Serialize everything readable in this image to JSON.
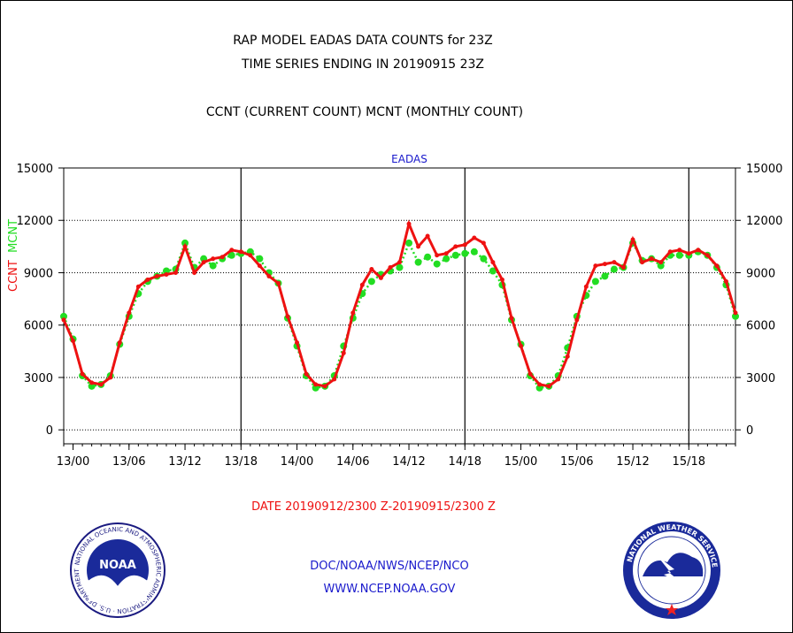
{
  "titles": {
    "line1": "RAP MODEL EADAS DATA COUNTS for 23Z",
    "line2": "TIME SERIES ENDING IN 20190915 23Z",
    "line3": "CCNT (CURRENT COUNT) MCNT (MONTHLY COUNT)"
  },
  "date_range": "DATE 20190912/2300 Z-20190915/2300 Z",
  "footer": {
    "org": "DOC/NOAA/NWS/NCEP/NCO",
    "url": "WWW.NCEP.NOAA.GOV"
  },
  "logos": {
    "left_text": "NOAA",
    "left_ring": "NATIONAL OCEANIC AND ATMOSPHERIC ADMINISTRATION · U.S. DEPARTMENT OF COMMERCE",
    "right_ring": "NATIONAL WEATHER SERVICE"
  },
  "colors": {
    "ccnt": "#ee1111",
    "mcnt": "#22dd22",
    "text_blue": "#1a1acc"
  },
  "chart_data": {
    "type": "line",
    "title": "EADAS",
    "ylabel_left": [
      "CCNT",
      "MCNT"
    ],
    "ylim": [
      -800,
      15000
    ],
    "yticks": [
      0,
      3000,
      6000,
      9000,
      12000,
      15000
    ],
    "x_start_hour": 0,
    "x_end_hour": 72,
    "xticks": [
      {
        "hour": 1,
        "label": "13/00"
      },
      {
        "hour": 7,
        "label": "13/06"
      },
      {
        "hour": 13,
        "label": "13/12"
      },
      {
        "hour": 19,
        "label": "13/18"
      },
      {
        "hour": 25,
        "label": "14/00"
      },
      {
        "hour": 31,
        "label": "14/06"
      },
      {
        "hour": 37,
        "label": "14/12"
      },
      {
        "hour": 43,
        "label": "14/18"
      },
      {
        "hour": 49,
        "label": "15/00"
      },
      {
        "hour": 55,
        "label": "15/06"
      },
      {
        "hour": 61,
        "label": "15/12"
      },
      {
        "hour": 67,
        "label": "15/18"
      }
    ],
    "day_boundaries": [
      19,
      43,
      67
    ],
    "grid": "dotted",
    "series": [
      {
        "name": "CCNT",
        "style": "line",
        "values": [
          6300,
          5100,
          3200,
          2700,
          2600,
          3000,
          5000,
          6700,
          8200,
          8600,
          8800,
          8900,
          9000,
          10500,
          9000,
          9600,
          9800,
          9900,
          10300,
          10200,
          10000,
          9400,
          8800,
          8400,
          6500,
          5000,
          3200,
          2600,
          2500,
          2900,
          4400,
          6700,
          8300,
          9200,
          8700,
          9300,
          9600,
          11800,
          10500,
          11100,
          10000,
          10100,
          10500,
          10600,
          11000,
          10700,
          9600,
          8600,
          6400,
          4800,
          3200,
          2600,
          2500,
          2900,
          4200,
          6300,
          8200,
          9400,
          9500,
          9600,
          9300,
          10900,
          9600,
          9800,
          9600,
          10200,
          10300,
          10100,
          10300,
          10000,
          9400,
          8500,
          6700
        ]
      },
      {
        "name": "MCNT",
        "style": "dots",
        "values": [
          6500,
          5200,
          3100,
          2500,
          2600,
          3100,
          4900,
          6500,
          7800,
          8500,
          8800,
          9100,
          9200,
          10700,
          9300,
          9800,
          9400,
          9800,
          10000,
          10100,
          10200,
          9800,
          9000,
          8400,
          6400,
          4800,
          3100,
          2400,
          2500,
          3100,
          4800,
          6400,
          7800,
          8500,
          8900,
          9100,
          9300,
          10700,
          9600,
          9900,
          9500,
          9800,
          10000,
          10100,
          10200,
          9800,
          9100,
          8300,
          6300,
          4900,
          3100,
          2400,
          2500,
          3100,
          4700,
          6500,
          7700,
          8500,
          8800,
          9200,
          9300,
          10700,
          9700,
          9800,
          9400,
          10000,
          10000,
          10000,
          10200,
          10000,
          9300,
          8300,
          6500
        ]
      }
    ]
  }
}
